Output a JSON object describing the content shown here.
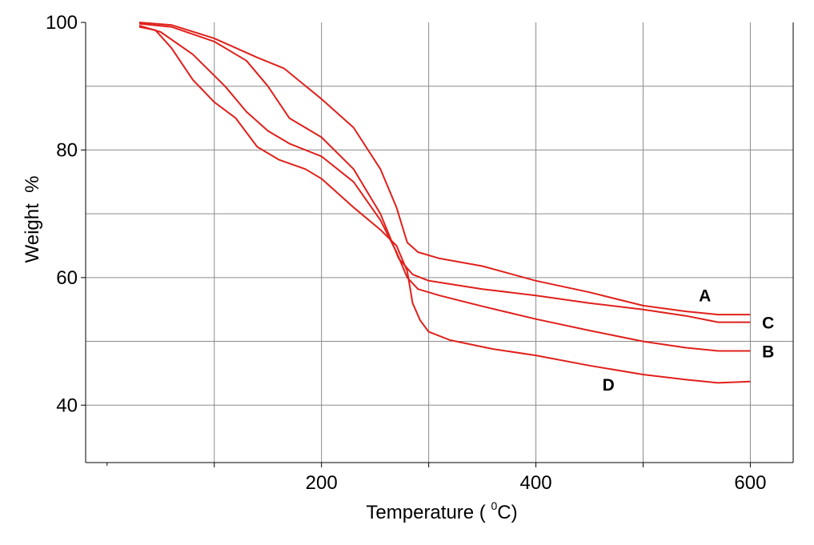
{
  "chart_data": {
    "type": "line",
    "title": "",
    "xlabel": "Temperature ( °C)",
    "xlabel_parts": {
      "prefix": "Temperature ( ",
      "sup": "0",
      "suffix": "C)"
    },
    "ylabel": "Weight  %",
    "xlim": [
      -20,
      640
    ],
    "ylim": [
      31,
      100
    ],
    "x_ticks": [
      200,
      400,
      600
    ],
    "x_tick_labels": [
      "200",
      "400",
      "600"
    ],
    "x_grid": [
      100,
      200,
      300,
      400,
      500,
      600
    ],
    "y_ticks": [
      40,
      60,
      80,
      100
    ],
    "y_tick_labels": [
      "40",
      "60",
      "80",
      "100"
    ],
    "y_grid": [
      40,
      50,
      60,
      70,
      80,
      90
    ],
    "grid": true,
    "line_color": "#e0201b",
    "series": [
      {
        "name": "A",
        "points": [
          [
            30,
            100
          ],
          [
            60,
            99.6
          ],
          [
            100,
            97.5
          ],
          [
            140,
            94.5
          ],
          [
            165,
            92.8
          ],
          [
            200,
            88
          ],
          [
            230,
            83.5
          ],
          [
            255,
            77
          ],
          [
            270,
            71
          ],
          [
            280,
            65.5
          ],
          [
            290,
            64
          ],
          [
            310,
            63
          ],
          [
            350,
            61.8
          ],
          [
            400,
            59.5
          ],
          [
            450,
            57.7
          ],
          [
            500,
            55.6
          ],
          [
            540,
            54.7
          ],
          [
            570,
            54.2
          ],
          [
            600,
            54.2
          ]
        ]
      },
      {
        "name": "C",
        "points": [
          [
            30,
            99.8
          ],
          [
            60,
            99.3
          ],
          [
            100,
            97
          ],
          [
            130,
            94
          ],
          [
            150,
            90
          ],
          [
            170,
            85
          ],
          [
            200,
            82
          ],
          [
            230,
            77
          ],
          [
            255,
            70
          ],
          [
            272,
            63
          ],
          [
            285,
            60.5
          ],
          [
            300,
            59.5
          ],
          [
            350,
            58.2
          ],
          [
            400,
            57.2
          ],
          [
            450,
            56
          ],
          [
            500,
            55
          ],
          [
            540,
            54
          ],
          [
            570,
            53
          ],
          [
            600,
            53
          ]
        ]
      },
      {
        "name": "B",
        "points": [
          [
            30,
            99.5
          ],
          [
            50,
            98.5
          ],
          [
            80,
            95
          ],
          [
            110,
            90
          ],
          [
            130,
            86
          ],
          [
            150,
            83
          ],
          [
            170,
            81
          ],
          [
            200,
            79
          ],
          [
            230,
            75
          ],
          [
            255,
            69
          ],
          [
            270,
            64
          ],
          [
            280,
            60
          ],
          [
            290,
            58.2
          ],
          [
            310,
            57.2
          ],
          [
            350,
            55.5
          ],
          [
            400,
            53.5
          ],
          [
            450,
            51.7
          ],
          [
            500,
            50
          ],
          [
            540,
            49
          ],
          [
            570,
            48.5
          ],
          [
            600,
            48.5
          ]
        ]
      },
      {
        "name": "D",
        "points": [
          [
            30,
            99.3
          ],
          [
            45,
            98.8
          ],
          [
            60,
            96
          ],
          [
            80,
            91
          ],
          [
            100,
            87.5
          ],
          [
            120,
            85
          ],
          [
            140,
            80.5
          ],
          [
            160,
            78.5
          ],
          [
            185,
            77
          ],
          [
            200,
            75.5
          ],
          [
            230,
            71
          ],
          [
            255,
            67.5
          ],
          [
            270,
            65
          ],
          [
            280,
            61
          ],
          [
            285,
            56
          ],
          [
            292,
            53.3
          ],
          [
            300,
            51.5
          ],
          [
            320,
            50.2
          ],
          [
            360,
            48.8
          ],
          [
            400,
            47.8
          ],
          [
            450,
            46.2
          ],
          [
            500,
            44.8
          ],
          [
            540,
            44
          ],
          [
            570,
            43.5
          ],
          [
            600,
            43.7
          ]
        ]
      }
    ],
    "label_positions": {
      "A": [
        552,
        56.3
      ],
      "C": [
        611,
        52
      ],
      "B": [
        611,
        47.5
      ],
      "D": [
        462,
        42.3
      ]
    }
  }
}
